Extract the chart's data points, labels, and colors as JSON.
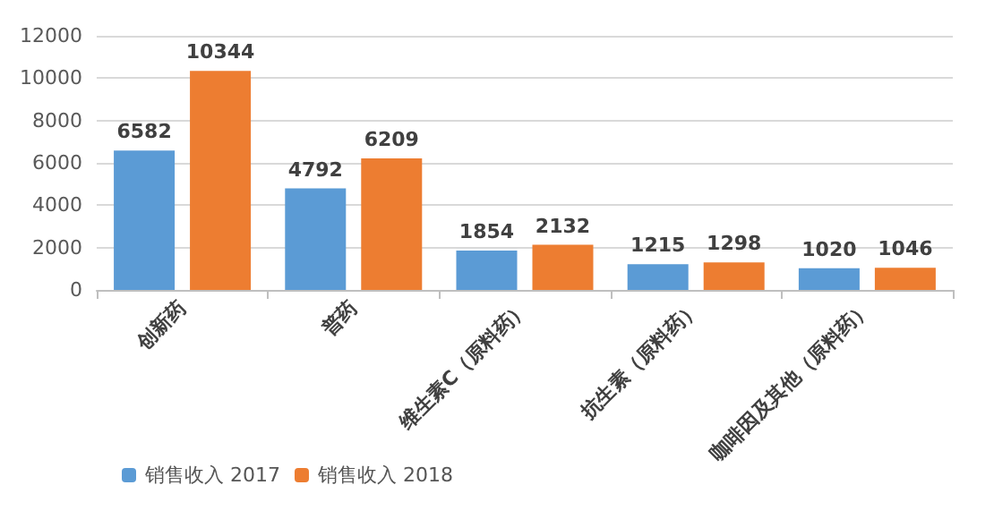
{
  "chart_data": {
    "type": "bar",
    "categories": [
      "创新药",
      "普药",
      "维生素C（原料药）",
      "抗生素（原料药）",
      "咖啡因及其他（原料药）"
    ],
    "series": [
      {
        "name": "销售收入 2017",
        "color": "#5b9bd5",
        "values": [
          6582,
          4792,
          1854,
          1215,
          1020
        ]
      },
      {
        "name": "销售收入 2018",
        "color": "#ed7d31",
        "values": [
          10344,
          6209,
          2132,
          1298,
          1046
        ]
      }
    ],
    "ylim": [
      0,
      12000
    ],
    "yticks": [
      0,
      2000,
      4000,
      6000,
      8000,
      10000,
      12000
    ],
    "grid": "y",
    "legend": "bottom left",
    "data_labels": true
  }
}
